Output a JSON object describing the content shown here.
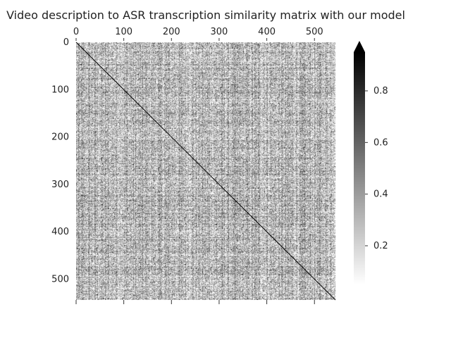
{
  "chart_data": {
    "type": "heatmap",
    "title": "Video description to ASR transcription similarity matrix with our model",
    "xlabel": "",
    "ylabel": "",
    "matrix_size": 544,
    "xlim": [
      0,
      544
    ],
    "ylim": [
      544,
      0
    ],
    "x_ticks": [
      0,
      100,
      200,
      300,
      400,
      500
    ],
    "y_ticks": [
      0,
      100,
      200,
      300,
      400,
      500
    ],
    "x_tick_labels": [
      "0",
      "100",
      "200",
      "300",
      "400",
      "500"
    ],
    "y_tick_labels": [
      "0",
      "100",
      "200",
      "300",
      "400",
      "500"
    ],
    "x_axis_position": "top",
    "colormap": "greys",
    "background_similarity": 0.3,
    "diagonal_similarity": 0.95,
    "colorbar": {
      "range": [
        0.05,
        0.95
      ],
      "ticks": [
        0.2,
        0.4,
        0.6,
        0.8
      ],
      "tick_labels": [
        "0.2",
        "0.4",
        "0.6",
        "0.8"
      ],
      "extend": "max",
      "placement": "right"
    },
    "grid": false,
    "colors": {
      "low": "#ffffff",
      "high": "#000000"
    }
  }
}
